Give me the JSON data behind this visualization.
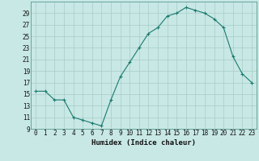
{
  "x": [
    0,
    1,
    2,
    3,
    4,
    5,
    6,
    7,
    8,
    9,
    10,
    11,
    12,
    13,
    14,
    15,
    16,
    17,
    18,
    19,
    20,
    21,
    22,
    23
  ],
  "y": [
    15.5,
    15.5,
    14.0,
    14.0,
    11.0,
    10.5,
    10.0,
    9.5,
    14.0,
    18.0,
    20.5,
    23.0,
    25.5,
    26.5,
    28.5,
    29.0,
    30.0,
    29.5,
    29.0,
    28.0,
    26.5,
    21.5,
    18.5,
    17.0
  ],
  "line_color": "#1a7a6e",
  "marker": "+",
  "marker_color": "#1a7a6e",
  "bg_color": "#c8e8e5",
  "grid_color": "#a8ccc9",
  "xlabel": "Humidex (Indice chaleur)",
  "xlim": [
    -0.5,
    23.5
  ],
  "ylim": [
    9,
    31
  ],
  "yticks": [
    9,
    11,
    13,
    15,
    17,
    19,
    21,
    23,
    25,
    27,
    29
  ],
  "xticks": [
    0,
    1,
    2,
    3,
    4,
    5,
    6,
    7,
    8,
    9,
    10,
    11,
    12,
    13,
    14,
    15,
    16,
    17,
    18,
    19,
    20,
    21,
    22,
    23
  ],
  "tick_fontsize": 5.5,
  "xlabel_fontsize": 6.5
}
